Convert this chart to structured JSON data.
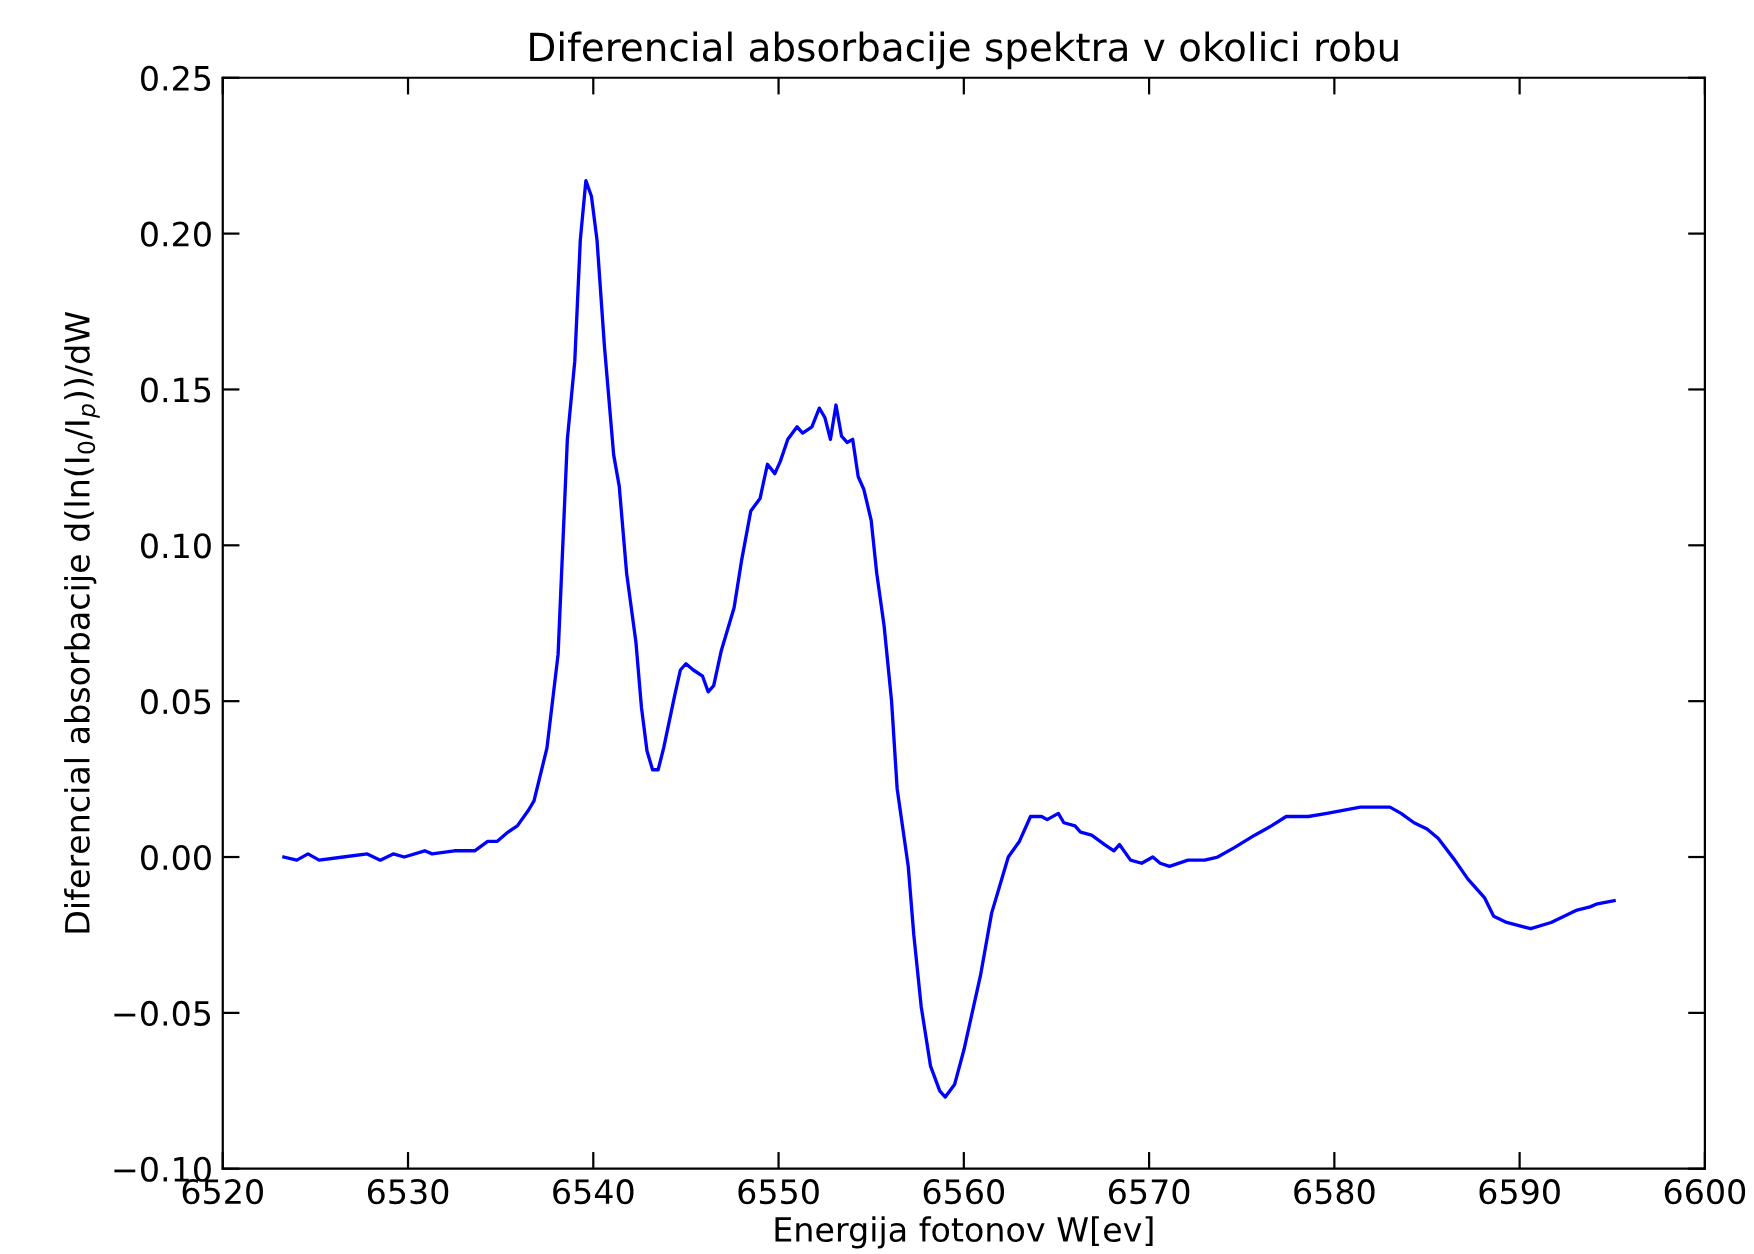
{
  "chart_data": {
    "type": "line",
    "title": "Diferencial absorbacije spektra v okolici robu",
    "xlabel": "Energija fotonov W[ev]",
    "ylabel": "Diferencial absorbacije d(ln(I$_{0}$/I$_{p}$))/dW",
    "xlim": [
      6520,
      6600
    ],
    "xticks": [
      6520,
      6530,
      6540,
      6550,
      6560,
      6570,
      6580,
      6590,
      6600
    ],
    "ylim": [
      -0.1,
      0.25
    ],
    "yticks": [
      {
        "value": -0.1,
        "label": "−0.10"
      },
      {
        "value": -0.05,
        "label": "−0.05"
      },
      {
        "value": 0.0,
        "label": "0.00"
      },
      {
        "value": 0.05,
        "label": "0.05"
      },
      {
        "value": 0.1,
        "label": "0.10"
      },
      {
        "value": 0.15,
        "label": "0.15"
      },
      {
        "value": 0.2,
        "label": "0.20"
      },
      {
        "value": 0.25,
        "label": "0.25"
      }
    ],
    "grid": false,
    "marker": "none",
    "line_style": "solid",
    "series": [
      {
        "color": "#0000ff",
        "x": [
          6523.3,
          6524.0,
          6524.6,
          6525.2,
          6526.5,
          6527.8,
          6528.5,
          6529.2,
          6529.8,
          6530.9,
          6531.3,
          6532.5,
          6533.6,
          6534.3,
          6534.8,
          6535.4,
          6535.9,
          6536.5,
          6536.8,
          6537.5,
          6538.1,
          6538.6,
          6539.0,
          6539.3,
          6539.6,
          6539.9,
          6540.2,
          6540.6,
          6541.1,
          6541.4,
          6541.8,
          6542.3,
          6542.6,
          6542.9,
          6543.2,
          6543.5,
          6543.8,
          6544.4,
          6544.7,
          6545.0,
          6545.4,
          6545.9,
          6546.2,
          6546.5,
          6546.9,
          6547.6,
          6548.0,
          6548.5,
          6549.0,
          6549.4,
          6549.8,
          6550.1,
          6550.5,
          6551.0,
          6551.3,
          6551.8,
          6552.2,
          6552.5,
          6552.8,
          6553.1,
          6553.4,
          6553.7,
          6554.0,
          6554.3,
          6554.6,
          6555.0,
          6555.3,
          6555.7,
          6556.1,
          6556.4,
          6557.0,
          6557.3,
          6557.7,
          6558.2,
          6558.7,
          6559.0,
          6559.5,
          6560.0,
          6560.6,
          6560.9,
          6561.5,
          6561.9,
          6562.4,
          6563.0,
          6563.6,
          6564.2,
          6564.5,
          6565.1,
          6565.4,
          6566.0,
          6566.3,
          6566.9,
          6567.6,
          6568.1,
          6568.4,
          6569.0,
          6569.6,
          6570.2,
          6570.6,
          6571.1,
          6572.1,
          6573.0,
          6573.7,
          6574.6,
          6575.7,
          6576.6,
          6577.4,
          6578.6,
          6579.6,
          6581.4,
          6583.0,
          6583.6,
          6584.3,
          6585.0,
          6585.6,
          6586.5,
          6587.2,
          6588.1,
          6588.6,
          6589.3,
          6590.6,
          6591.7,
          6592.4,
          6593.1,
          6593.8,
          6594.2,
          6595.1
        ],
        "values": [
          0.0,
          -0.001,
          0.001,
          -0.001,
          0.0,
          0.001,
          -0.001,
          0.001,
          0.0,
          0.002,
          0.001,
          0.002,
          0.002,
          0.005,
          0.005,
          0.008,
          0.01,
          0.015,
          0.018,
          0.035,
          0.065,
          0.134,
          0.159,
          0.198,
          0.217,
          0.212,
          0.198,
          0.164,
          0.129,
          0.119,
          0.091,
          0.069,
          0.048,
          0.034,
          0.028,
          0.028,
          0.035,
          0.052,
          0.06,
          0.062,
          0.06,
          0.058,
          0.053,
          0.055,
          0.066,
          0.08,
          0.095,
          0.111,
          0.115,
          0.126,
          0.123,
          0.127,
          0.134,
          0.138,
          0.136,
          0.138,
          0.144,
          0.141,
          0.134,
          0.145,
          0.135,
          0.133,
          0.134,
          0.122,
          0.118,
          0.108,
          0.091,
          0.074,
          0.05,
          0.022,
          -0.003,
          -0.025,
          -0.048,
          -0.067,
          -0.075,
          -0.077,
          -0.073,
          -0.062,
          -0.046,
          -0.038,
          -0.018,
          -0.01,
          0.0,
          0.005,
          0.013,
          0.013,
          0.012,
          0.014,
          0.011,
          0.01,
          0.008,
          0.007,
          0.004,
          0.002,
          0.004,
          -0.001,
          -0.002,
          0.0,
          -0.002,
          -0.003,
          -0.001,
          -0.001,
          0.0,
          0.003,
          0.007,
          0.01,
          0.013,
          0.013,
          0.014,
          0.016,
          0.016,
          0.014,
          0.011,
          0.009,
          0.006,
          -0.001,
          -0.007,
          -0.013,
          -0.019,
          -0.021,
          -0.023,
          -0.021,
          -0.019,
          -0.017,
          -0.016,
          -0.015,
          -0.014
        ]
      }
    ]
  }
}
